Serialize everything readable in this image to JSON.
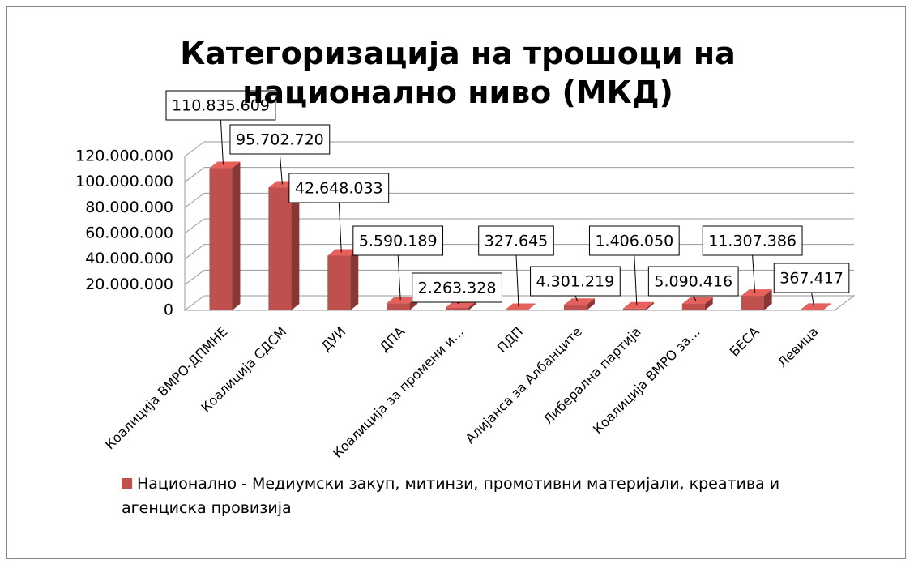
{
  "chart_data": {
    "type": "bar3d",
    "title": "Категоризација на трошоци на национално ниво (МКД)",
    "categories": [
      "Коалиција ВМРО-ДПМНЕ",
      "Коалиција СДСМ",
      "ДУИ",
      "ДПА",
      "Коалиција за промени и…",
      "ПДП",
      "Алијанса за Албанците",
      "Либерална партија",
      "Коалиција ВМРО за…",
      "БЕСА",
      "Левица"
    ],
    "series": [
      {
        "name": "Национално - Медиумски закуп, митинзи, промотивни материјали, креатива и агенциска провизија",
        "color": "#c0504d",
        "values": [
          110835609,
          95702720,
          42648033,
          5590189,
          2263328,
          327645,
          4301219,
          1406050,
          5090416,
          11307386,
          367417
        ],
        "value_labels": [
          "110.835.609",
          "95.702.720",
          "42.648.033",
          "5.590.189",
          "2.263.328",
          "327.645",
          "4.301.219",
          "1.406.050",
          "5.090.416",
          "11.307.386",
          "367.417"
        ]
      }
    ],
    "ylim": [
      0,
      120000000
    ],
    "yticks": [
      0,
      {
        "value": 20000000,
        "label": "20.000.000"
      },
      {
        "value": 40000000,
        "label": "40.000.000"
      },
      {
        "value": 60000000,
        "label": "60.000.000"
      },
      {
        "value": 80000000,
        "label": "80.000.000"
      },
      {
        "value": 100000000,
        "label": "100.000.000"
      },
      {
        "value": 120000000,
        "label": "120.000.000"
      }
    ],
    "grid": true,
    "legend": "bottom"
  }
}
